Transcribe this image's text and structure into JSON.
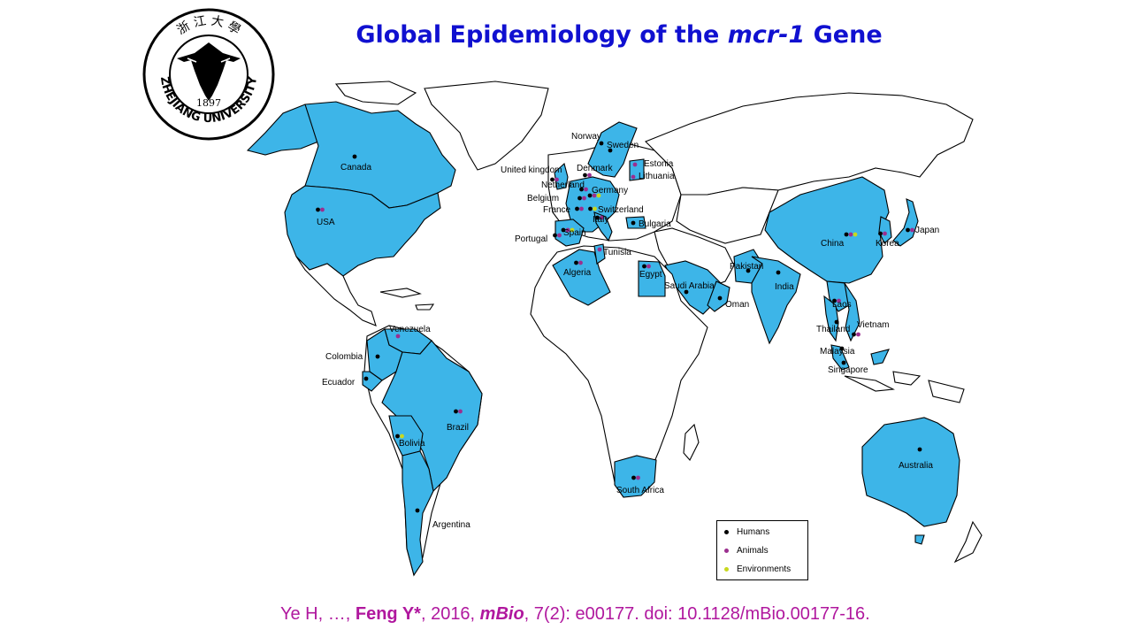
{
  "title": {
    "prefix": "Global Epidemiology of the ",
    "gene": "mcr-1",
    "suffix": " Gene"
  },
  "logo": {
    "text_top": "浙 江 大 學",
    "year": "1897",
    "name": "ZHEJIANG UNIVERSITY"
  },
  "colors": {
    "positive_country": "#3db5e8",
    "humans": "#000000",
    "animals": "#9b2f8f",
    "environments": "#c8d81e",
    "title": "#1010d0",
    "citation": "#b0179e"
  },
  "legend": [
    {
      "label": "Humans",
      "color": "#000000"
    },
    {
      "label": "Animals",
      "color": "#9b2f8f"
    },
    {
      "label": "Environments",
      "color": "#c8d81e"
    }
  ],
  "countries": [
    {
      "name": "Canada",
      "sources": [
        "humans"
      ]
    },
    {
      "name": "USA",
      "sources": [
        "humans",
        "animals"
      ]
    },
    {
      "name": "Norway",
      "sources": [
        "humans"
      ]
    },
    {
      "name": "Sweden",
      "sources": [
        "humans"
      ]
    },
    {
      "name": "Denmark",
      "sources": [
        "humans",
        "animals"
      ]
    },
    {
      "name": "United kingdom",
      "sources": [
        "humans",
        "animals"
      ]
    },
    {
      "name": "Netherland",
      "sources": [
        "humans",
        "animals"
      ]
    },
    {
      "name": "Germany",
      "sources": [
        "humans",
        "animals",
        "environments"
      ]
    },
    {
      "name": "Belgium",
      "sources": [
        "humans",
        "animals"
      ]
    },
    {
      "name": "France",
      "sources": [
        "humans",
        "animals"
      ]
    },
    {
      "name": "Switzerland",
      "sources": [
        "humans",
        "environments"
      ]
    },
    {
      "name": "Italy",
      "sources": [
        "humans",
        "animals"
      ]
    },
    {
      "name": "Spain",
      "sources": [
        "humans",
        "animals",
        "environments"
      ]
    },
    {
      "name": "Portugal",
      "sources": [
        "humans",
        "animals"
      ]
    },
    {
      "name": "Estonia",
      "sources": [
        "animals"
      ]
    },
    {
      "name": "Lithuania",
      "sources": [
        "animals"
      ]
    },
    {
      "name": "Bulgaria",
      "sources": [
        "humans"
      ]
    },
    {
      "name": "Tunisia",
      "sources": [
        "animals"
      ]
    },
    {
      "name": "Algeria",
      "sources": [
        "humans",
        "animals"
      ]
    },
    {
      "name": "Egypt",
      "sources": [
        "humans",
        "animals"
      ]
    },
    {
      "name": "Saudi Arabia",
      "sources": [
        "humans"
      ]
    },
    {
      "name": "Oman",
      "sources": [
        "humans"
      ]
    },
    {
      "name": "Pakistan",
      "sources": [
        "humans"
      ]
    },
    {
      "name": "India",
      "sources": [
        "humans"
      ]
    },
    {
      "name": "China",
      "sources": [
        "humans",
        "animals",
        "environments"
      ]
    },
    {
      "name": "Korea",
      "sources": [
        "humans",
        "animals"
      ]
    },
    {
      "name": "Japan",
      "sources": [
        "humans",
        "animals"
      ]
    },
    {
      "name": "Laos",
      "sources": [
        "humans",
        "animals"
      ]
    },
    {
      "name": "Vietnam",
      "sources": [
        "humans",
        "animals"
      ]
    },
    {
      "name": "Thailand",
      "sources": [
        "humans"
      ]
    },
    {
      "name": "Malaysia",
      "sources": [
        "humans"
      ]
    },
    {
      "name": "Singapore",
      "sources": [
        "humans"
      ]
    },
    {
      "name": "Australia",
      "sources": [
        "humans"
      ]
    },
    {
      "name": "Venezuela",
      "sources": [
        "animals"
      ]
    },
    {
      "name": "Colombia",
      "sources": [
        "humans"
      ]
    },
    {
      "name": "Ecuador",
      "sources": [
        "humans"
      ]
    },
    {
      "name": "Brazil",
      "sources": [
        "humans",
        "animals"
      ]
    },
    {
      "name": "Bolivia",
      "sources": [
        "humans",
        "environments"
      ]
    },
    {
      "name": "Argentina",
      "sources": [
        "humans"
      ]
    },
    {
      "name": "South Africa",
      "sources": [
        "humans",
        "animals"
      ]
    }
  ],
  "citation": {
    "authors_a": "Ye H, …, ",
    "corresponding": "Feng Y*",
    "year_part": ", 2016, ",
    "journal": "mBio",
    "rest": ", 7(2): e00177. doi: 10.1128/mBio.00177-16."
  }
}
